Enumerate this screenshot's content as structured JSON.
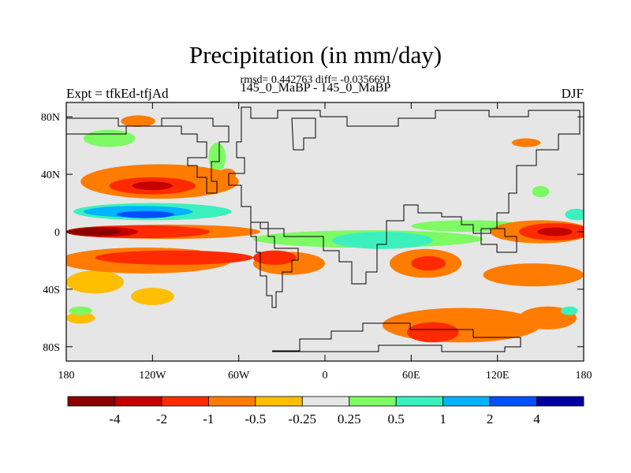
{
  "chart_data": {
    "type": "heatmap",
    "title": "Precipitation (in mm/day)",
    "subtitle": "rmsd= 0.442763 diff= -0.0356691",
    "label_left": "Expt = tfkEd-tfjAd",
    "label_center": "145_0_MaBP - 145_0_MaBP",
    "label_right": "DJF",
    "xlim": [
      -180,
      180
    ],
    "ylim": [
      -90,
      90
    ],
    "x_ticks": [
      {
        "value": -180,
        "label": "180"
      },
      {
        "value": -120,
        "label": "120W"
      },
      {
        "value": -60,
        "label": "60W"
      },
      {
        "value": 0,
        "label": "0"
      },
      {
        "value": 60,
        "label": "60E"
      },
      {
        "value": 120,
        "label": "120E"
      },
      {
        "value": 180,
        "label": "180"
      }
    ],
    "y_ticks": [
      {
        "value": 80,
        "label": "80N"
      },
      {
        "value": 40,
        "label": "40N"
      },
      {
        "value": 0,
        "label": "0"
      },
      {
        "value": -40,
        "label": "40S"
      },
      {
        "value": -80,
        "label": "80S"
      }
    ],
    "colorbar": {
      "colors": [
        "#8b0000",
        "#c40000",
        "#ff2a00",
        "#ff7c00",
        "#ffbe00",
        "#e6e6e6",
        "#7dfa64",
        "#3cf0be",
        "#00b4ff",
        "#0050ff",
        "#0000a0"
      ],
      "labels": [
        "-4",
        "-2",
        "-1",
        "-0.5",
        "-0.25",
        "0.25",
        "0.5",
        "1",
        "2",
        "4"
      ]
    },
    "regions": [
      {
        "level": -4,
        "lon": -160,
        "lat": 0,
        "rx": 18,
        "ry": 2.5
      },
      {
        "level": -2,
        "lon": -155,
        "lat": 0,
        "rx": 25,
        "ry": 3.5
      },
      {
        "level": -1,
        "lon": -130,
        "lat": 0,
        "rx": 50,
        "ry": 4.5
      },
      {
        "level": -0.5,
        "lon": -110,
        "lat": 0,
        "rx": 65,
        "ry": 5
      },
      {
        "level": -1,
        "lon": 160,
        "lat": 0,
        "rx": 25,
        "ry": 6
      },
      {
        "level": -2,
        "lon": 160,
        "lat": 0,
        "rx": 12,
        "ry": 3
      },
      {
        "level": -0.5,
        "lon": 150,
        "lat": 0,
        "rx": 35,
        "ry": 8
      },
      {
        "level": -0.5,
        "lon": -115,
        "lat": 35,
        "rx": 55,
        "ry": 12
      },
      {
        "level": -1,
        "lon": -120,
        "lat": 32,
        "rx": 30,
        "ry": 6
      },
      {
        "level": -2,
        "lon": -120,
        "lat": 32,
        "rx": 14,
        "ry": 3
      },
      {
        "level": -0.5,
        "lon": -125,
        "lat": -20,
        "rx": 60,
        "ry": 9
      },
      {
        "level": -1,
        "lon": -105,
        "lat": -18,
        "rx": 55,
        "ry": 5
      },
      {
        "level": -0.5,
        "lon": -25,
        "lat": -22,
        "rx": 25,
        "ry": 8
      },
      {
        "level": -1,
        "lon": -35,
        "lat": -18,
        "rx": 15,
        "ry": 5
      },
      {
        "level": -0.25,
        "lon": -160,
        "lat": -35,
        "rx": 20,
        "ry": 8
      },
      {
        "level": -0.25,
        "lon": -120,
        "lat": -45,
        "rx": 15,
        "ry": 6
      },
      {
        "level": -0.5,
        "lon": 70,
        "lat": -22,
        "rx": 25,
        "ry": 10
      },
      {
        "level": -1,
        "lon": 72,
        "lat": -22,
        "rx": 12,
        "ry": 5
      },
      {
        "level": -0.5,
        "lon": 145,
        "lat": -30,
        "rx": 35,
        "ry": 8
      },
      {
        "level": -0.5,
        "lon": 95,
        "lat": -65,
        "rx": 55,
        "ry": 12
      },
      {
        "level": -1,
        "lon": 75,
        "lat": -70,
        "rx": 18,
        "ry": 7
      },
      {
        "level": -0.5,
        "lon": 155,
        "lat": -60,
        "rx": 20,
        "ry": 8
      },
      {
        "level": -0.25,
        "lon": -170,
        "lat": -60,
        "rx": 10,
        "ry": 4
      },
      {
        "level": -0.5,
        "lon": -130,
        "lat": 77,
        "rx": 12,
        "ry": 4
      },
      {
        "level": -0.5,
        "lon": -68,
        "lat": 40,
        "rx": 6,
        "ry": 4
      },
      {
        "level": -0.5,
        "lon": 140,
        "lat": 62,
        "rx": 10,
        "ry": 3
      },
      {
        "level": 0.25,
        "lon": -150,
        "lat": 65,
        "rx": 18,
        "ry": 6
      },
      {
        "level": 0.25,
        "lon": -75,
        "lat": 52,
        "rx": 6,
        "ry": 10
      },
      {
        "level": 0.5,
        "lon": -120,
        "lat": 14,
        "rx": 55,
        "ry": 6
      },
      {
        "level": 1,
        "lon": -130,
        "lat": 14,
        "rx": 38,
        "ry": 4
      },
      {
        "level": 2,
        "lon": -125,
        "lat": 12,
        "rx": 20,
        "ry": 2.5
      },
      {
        "level": 0.25,
        "lon": 30,
        "lat": -5,
        "rx": 80,
        "ry": 6
      },
      {
        "level": 0.5,
        "lon": 40,
        "lat": -6,
        "rx": 35,
        "ry": 6
      },
      {
        "level": 0.25,
        "lon": 100,
        "lat": 4,
        "rx": 40,
        "ry": 4
      },
      {
        "level": 0.5,
        "lon": 175,
        "lat": 12,
        "rx": 8,
        "ry": 4
      },
      {
        "level": 0.25,
        "lon": 150,
        "lat": 28,
        "rx": 6,
        "ry": 4
      },
      {
        "level": 0.25,
        "lon": -170,
        "lat": -55,
        "rx": 8,
        "ry": 3
      },
      {
        "level": 0.5,
        "lon": 170,
        "lat": -55,
        "rx": 6,
        "ry": 3
      }
    ]
  }
}
